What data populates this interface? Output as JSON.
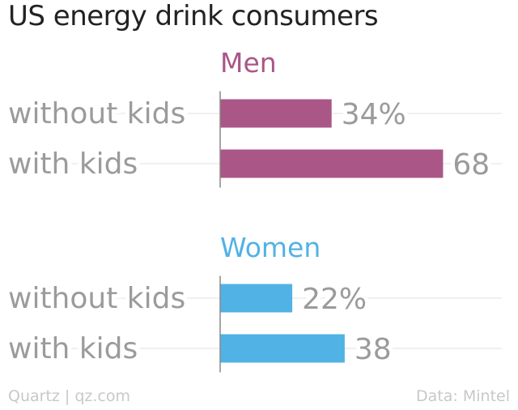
{
  "chart_data": {
    "type": "bar",
    "orientation": "horizontal",
    "title": "US energy drink consumers",
    "groups": [
      {
        "name": "Men",
        "color": "#aa5687",
        "categories": [
          "without kids",
          "with kids"
        ],
        "values": [
          34,
          68
        ],
        "value_labels": [
          "34%",
          "68"
        ]
      },
      {
        "name": "Women",
        "color": "#51b2e5",
        "categories": [
          "without kids",
          "with kids"
        ],
        "values": [
          22,
          38
        ],
        "value_labels": [
          "22%",
          "38"
        ]
      }
    ],
    "xlim": [
      0,
      100
    ],
    "grid": true
  },
  "colors": {
    "title": "#222222",
    "category_label": "#9b9b9b",
    "value_label": "#9b9b9b",
    "gridline": "#ececec",
    "axis": "#888888",
    "footer": "#c8c8c8"
  },
  "footer": {
    "source_left": "Quartz | qz.com",
    "source_right": "Data: Mintel"
  }
}
